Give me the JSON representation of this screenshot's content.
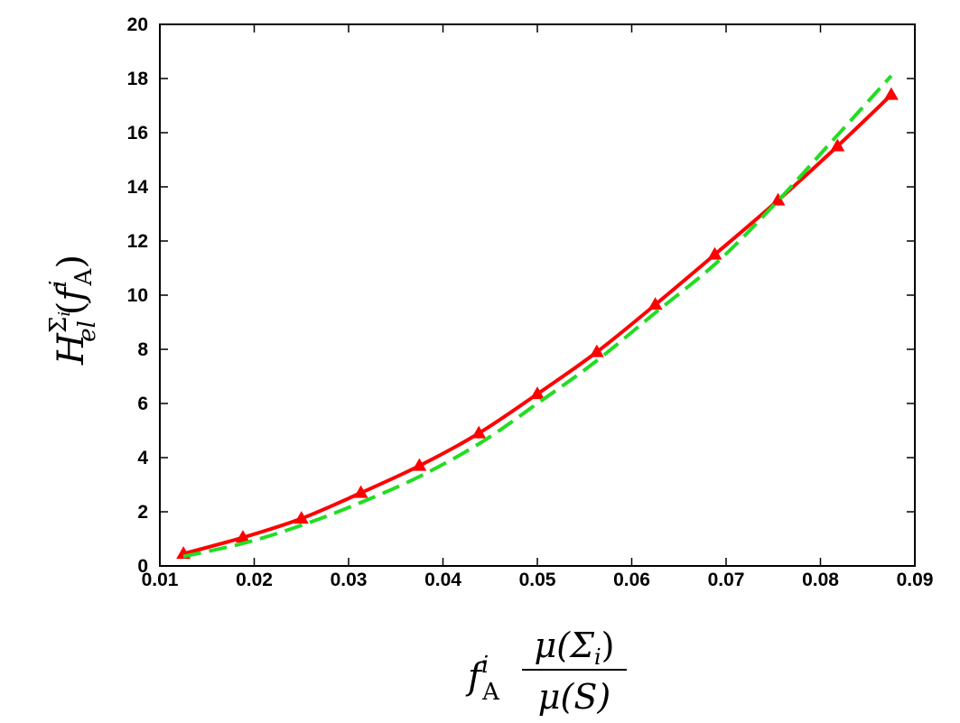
{
  "chart_data": {
    "type": "line",
    "title": "",
    "xlabel": {
      "f": "f",
      "sup_i": "i",
      "sub_A": "A",
      "numerator": "μ(Σ",
      "numerator_sub": "i",
      "numerator_close": ")",
      "denominator": "μ(S)"
    },
    "ylabel": {
      "H": "H",
      "sub_el": "el",
      "sup_sigma": "Σ",
      "sup_sigma_sub": "i",
      "open": "(",
      "f": "f",
      "sup_i": "i",
      "sub_A": "A",
      "close": ")"
    },
    "xlim": [
      0.01,
      0.09
    ],
    "ylim": [
      0,
      20
    ],
    "x_ticks": [
      "0.01",
      "0.02",
      "0.03",
      "0.04",
      "0.05",
      "0.06",
      "0.07",
      "0.08",
      "0.09"
    ],
    "y_ticks": [
      "0",
      "2",
      "4",
      "6",
      "8",
      "10",
      "12",
      "14",
      "16",
      "18",
      "20"
    ],
    "grid": false,
    "series": [
      {
        "style": "solid line with triangle markers",
        "color": "#ff0000",
        "x": [
          0.0125,
          0.0188,
          0.025,
          0.0313,
          0.0375,
          0.0438,
          0.05,
          0.0563,
          0.0625,
          0.0688,
          0.0755,
          0.0818,
          0.0875
        ],
        "y": [
          0.45,
          1.05,
          1.75,
          2.7,
          3.7,
          4.9,
          6.35,
          7.9,
          9.65,
          11.5,
          13.5,
          15.5,
          17.4
        ]
      },
      {
        "style": "dashed line",
        "color": "#22dd22",
        "x": [
          0.0125,
          0.019,
          0.025,
          0.031,
          0.0375,
          0.044,
          0.05,
          0.056,
          0.0625,
          0.069,
          0.075,
          0.081,
          0.0875
        ],
        "y": [
          0.35,
          0.85,
          1.5,
          2.3,
          3.3,
          4.55,
          6.0,
          7.5,
          9.35,
          11.2,
          13.3,
          15.6,
          18.1
        ]
      }
    ]
  }
}
